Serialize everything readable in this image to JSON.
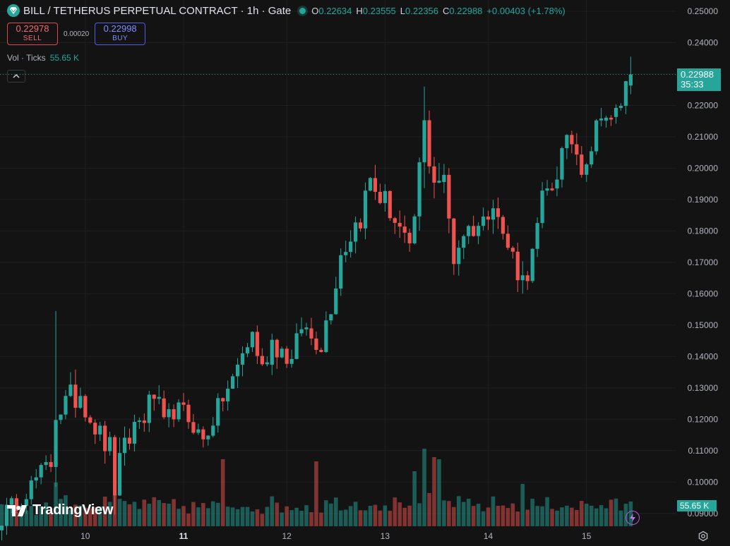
{
  "header": {
    "symbol": "BILL / TETHERUS PERPETUAL CONTRACT · 1h · Gate",
    "ohlc": [
      {
        "label": "O",
        "value": "0.22634"
      },
      {
        "label": "H",
        "value": "0.23555"
      },
      {
        "label": "L",
        "value": "0.22356"
      },
      {
        "label": "C",
        "value": "0.22988"
      }
    ],
    "change": "+0.00403 (+1.78%)"
  },
  "trade": {
    "sell_price": "0.22978",
    "sell_label": "SELL",
    "spread": "0.00020",
    "buy_price": "0.22998",
    "buy_label": "BUY"
  },
  "volume_legend": {
    "label": "Vol · Ticks",
    "value": "55.65 K"
  },
  "price_tag": {
    "price": "0.22988",
    "countdown": "35:33"
  },
  "volume_tag": "55.65 K",
  "branding": "TradingView",
  "colors": {
    "up": "#26a69a",
    "down": "#ef5350",
    "background": "#131313"
  },
  "icons": [
    "gate-logo-icon",
    "live-dot-icon",
    "chevron-up-icon",
    "tradingview-logo-icon",
    "bolt-icon",
    "settings-icon"
  ],
  "chart_data": {
    "type": "candlestick",
    "interval": "1h",
    "y_range": [
      0.085,
      0.25
    ],
    "y_ticks": [
      "0.25000",
      "0.24000",
      "0.23000",
      "0.22000",
      "0.21000",
      "0.20000",
      "0.19000",
      "0.18000",
      "0.17000",
      "0.16000",
      "0.15000",
      "0.14000",
      "0.13000",
      "0.12000",
      "0.11000",
      "0.10000",
      "0.09000",
      "0.08000"
    ],
    "x_ticks": [
      {
        "label": "10",
        "index": 17,
        "bold": false
      },
      {
        "label": "11",
        "index": 37,
        "bold": true
      },
      {
        "label": "12",
        "index": 58,
        "bold": false
      },
      {
        "label": "13",
        "index": 78,
        "bold": false
      },
      {
        "label": "14",
        "index": 99,
        "bold": false
      },
      {
        "label": "15",
        "index": 119,
        "bold": false
      }
    ],
    "anchors": [
      [
        0,
        0.089,
        1.6
      ],
      [
        4,
        0.095,
        1.2
      ],
      [
        8,
        0.103,
        1.3
      ],
      [
        10,
        0.106,
        1.6
      ],
      [
        11,
        0.128,
        6.0
      ],
      [
        13,
        0.124,
        2.6
      ],
      [
        16,
        0.129,
        2.2
      ],
      [
        18,
        0.121,
        2.0
      ],
      [
        20,
        0.115,
        1.8
      ],
      [
        22,
        0.11,
        2.3
      ],
      [
        23,
        0.099,
        2.8
      ],
      [
        25,
        0.11,
        2.1
      ],
      [
        27,
        0.118,
        2.0
      ],
      [
        29,
        0.121,
        1.6
      ],
      [
        31,
        0.128,
        2.0
      ],
      [
        33,
        0.117,
        1.8
      ],
      [
        35,
        0.123,
        1.5
      ],
      [
        37,
        0.122,
        1.5
      ],
      [
        39,
        0.118,
        1.3
      ],
      [
        41,
        0.113,
        1.6
      ],
      [
        43,
        0.12,
        1.4
      ],
      [
        45,
        0.127,
        1.5
      ],
      [
        47,
        0.132,
        1.8
      ],
      [
        49,
        0.141,
        2.0
      ],
      [
        51,
        0.147,
        1.9
      ],
      [
        53,
        0.136,
        1.5
      ],
      [
        55,
        0.145,
        2.2
      ],
      [
        57,
        0.142,
        1.6
      ],
      [
        59,
        0.138,
        1.6
      ],
      [
        61,
        0.15,
        1.8
      ],
      [
        63,
        0.146,
        1.6
      ],
      [
        65,
        0.144,
        1.6
      ],
      [
        67,
        0.158,
        2.5
      ],
      [
        69,
        0.173,
        2.4
      ],
      [
        71,
        0.179,
        2.0
      ],
      [
        73,
        0.185,
        2.2
      ],
      [
        75,
        0.196,
        2.3
      ],
      [
        77,
        0.191,
        2.2
      ],
      [
        79,
        0.187,
        2.0
      ],
      [
        81,
        0.18,
        2.3
      ],
      [
        83,
        0.17,
        2.8
      ],
      [
        85,
        0.199,
        3.0
      ],
      [
        86,
        0.212,
        3.8
      ],
      [
        88,
        0.198,
        3.0
      ],
      [
        90,
        0.195,
        2.2
      ],
      [
        92,
        0.172,
        2.6
      ],
      [
        94,
        0.18,
        1.8
      ],
      [
        96,
        0.181,
        1.6
      ],
      [
        98,
        0.183,
        1.6
      ],
      [
        100,
        0.192,
        2.2
      ],
      [
        102,
        0.178,
        1.8
      ],
      [
        104,
        0.172,
        1.8
      ],
      [
        106,
        0.164,
        2.1
      ],
      [
        108,
        0.172,
        1.8
      ],
      [
        110,
        0.189,
        2.0
      ],
      [
        112,
        0.195,
        2.0
      ],
      [
        114,
        0.204,
        2.0
      ],
      [
        116,
        0.209,
        1.8
      ],
      [
        118,
        0.201,
        1.7
      ],
      [
        120,
        0.207,
        1.6
      ],
      [
        122,
        0.219,
        1.8
      ],
      [
        124,
        0.214,
        1.8
      ],
      [
        126,
        0.221,
        1.6
      ],
      [
        127,
        0.2263,
        1.6
      ],
      [
        128,
        0.22988,
        1.5
      ]
    ],
    "last": {
      "open": 0.22634,
      "high": 0.23555,
      "low": 0.22356,
      "close": 0.22988
    },
    "last_volume": "55.65 K"
  }
}
